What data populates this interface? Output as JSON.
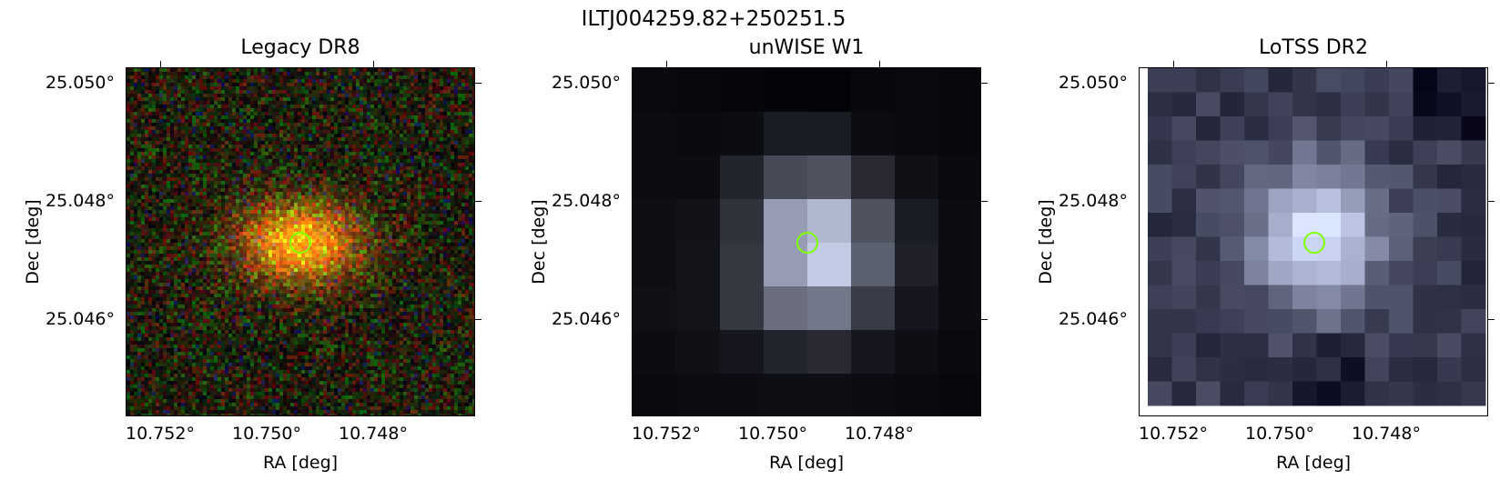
{
  "figure": {
    "suptitle": "ILTJ004259.82+250251.5"
  },
  "axes": {
    "xlabel": "RA [deg]",
    "ylabel": "Dec [deg]",
    "xticks": [
      "10.752°",
      "10.750°",
      "10.748°"
    ],
    "yticks": [
      "25.050°",
      "25.048°",
      "25.046°"
    ]
  },
  "panels": [
    {
      "title": "Legacy DR8",
      "colormap": "rgb",
      "marker_color": "#7fff00"
    },
    {
      "title": "unWISE W1",
      "colormap": "bone",
      "marker_color": "#7fff00"
    },
    {
      "title": "LoTSS DR2",
      "colormap": "bone",
      "marker_color": "#7fff00"
    }
  ]
}
